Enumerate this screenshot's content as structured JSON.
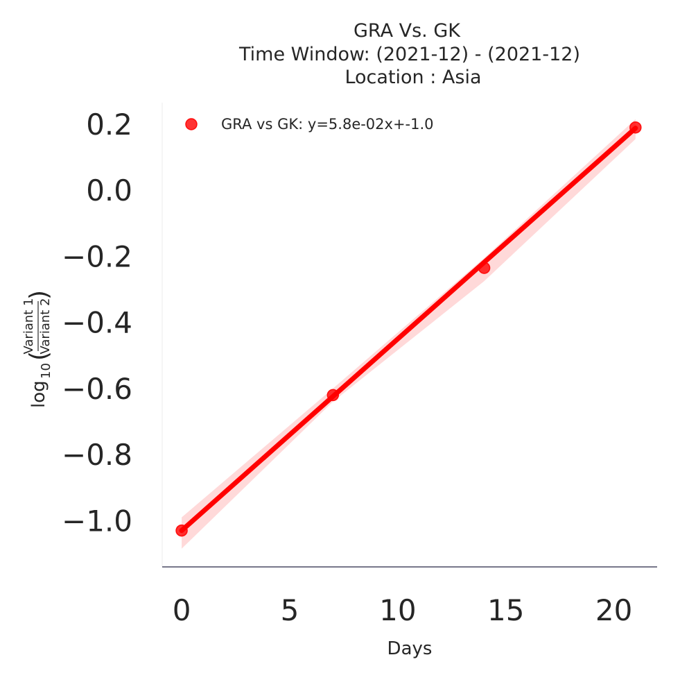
{
  "chart_data": {
    "type": "scatter",
    "title_lines": [
      "GRA Vs. GK",
      "Time Window: (2021-12) - (2021-12)",
      "Location : Asia"
    ],
    "xlabel": "Days",
    "ylabel": {
      "base": "log",
      "subscript": "10",
      "numerator": "Variant 1",
      "denominator": "Variant 2"
    },
    "xlim": [
      -0.9,
      22
    ],
    "ylim": [
      -1.14,
      0.265
    ],
    "x_ticks": [
      0,
      5,
      10,
      15,
      20
    ],
    "x_tick_labels": [
      "0",
      "5",
      "10",
      "15",
      "20"
    ],
    "y_ticks": [
      0.2,
      0.0,
      -0.2,
      -0.4,
      -0.6,
      -0.8,
      -1.0
    ],
    "y_tick_labels": [
      "0.2",
      "0.0",
      "−0.2",
      "−0.4",
      "−0.6",
      "−0.8",
      "−1.0"
    ],
    "grid": false,
    "legend_position": "top-left",
    "series": [
      {
        "name": "GRA vs GK: y=5.8e-02x+-1.0",
        "color": "#ff0000",
        "x": [
          0,
          7,
          14,
          21
        ],
        "y": [
          -1.03,
          -0.62,
          -0.235,
          0.19
        ],
        "fit": {
          "slope": 0.058,
          "intercept": -1.03
        },
        "ci_band": {
          "lower": [
            -1.085,
            -0.64,
            -0.275,
            0.155
          ],
          "upper": [
            -0.99,
            -0.6,
            -0.205,
            0.215
          ]
        }
      }
    ]
  }
}
